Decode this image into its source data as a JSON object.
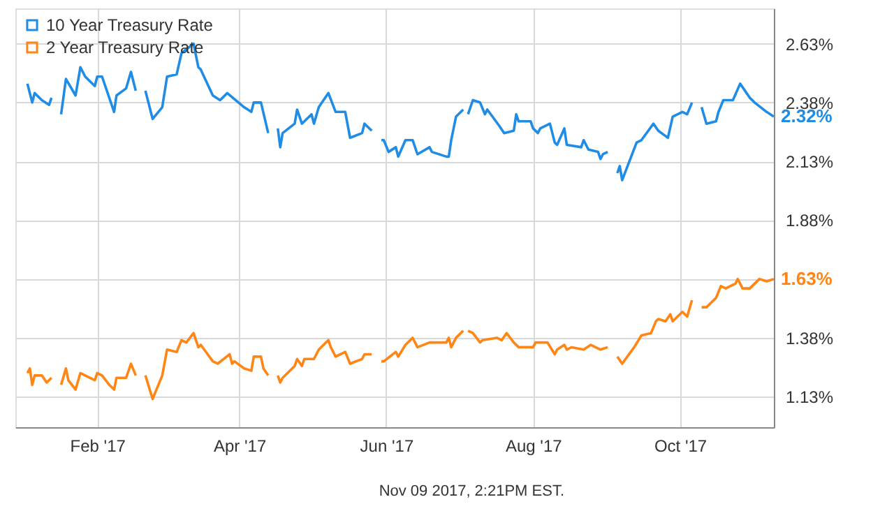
{
  "chart_data": {
    "type": "line",
    "series": [
      {
        "name": "10 Year Treasury Rate",
        "color": "#1f8ce6",
        "x": [
          "2017-01-03",
          "2017-01-05",
          "2017-01-06",
          "2017-01-09",
          "2017-01-12",
          "2017-01-13",
          "2017-01-16",
          "2017-01-17",
          "2017-01-19",
          "2017-01-23",
          "2017-01-25",
          "2017-01-27",
          "2017-01-31",
          "2017-02-01",
          "2017-02-03",
          "2017-02-08",
          "2017-02-09",
          "2017-02-13",
          "2017-02-15",
          "2017-02-17",
          "2017-02-20",
          "2017-02-21",
          "2017-02-24",
          "2017-02-28",
          "2017-03-02",
          "2017-03-06",
          "2017-03-08",
          "2017-03-13",
          "2017-03-15",
          "2017-03-16",
          "2017-03-21",
          "2017-03-24",
          "2017-03-27",
          "2017-04-03",
          "2017-04-06",
          "2017-04-07",
          "2017-04-10",
          "2017-04-13",
          "2017-04-14",
          "2017-04-17",
          "2017-04-18",
          "2017-04-19",
          "2017-04-24",
          "2017-04-25",
          "2017-04-27",
          "2017-05-01",
          "2017-05-02",
          "2017-05-04",
          "2017-05-08",
          "2017-05-11",
          "2017-05-15",
          "2017-05-17",
          "2017-05-22",
          "2017-05-23",
          "2017-05-26",
          "2017-05-29",
          "2017-05-30",
          "2017-05-31",
          "2017-06-02",
          "2017-06-05",
          "2017-06-06",
          "2017-06-09",
          "2017-06-12",
          "2017-06-14",
          "2017-06-19",
          "2017-06-20",
          "2017-06-26",
          "2017-06-27",
          "2017-06-28",
          "2017-06-30",
          "2017-07-03",
          "2017-07-04",
          "2017-07-05",
          "2017-07-07",
          "2017-07-10",
          "2017-07-12",
          "2017-07-13",
          "2017-07-18",
          "2017-07-20",
          "2017-07-24",
          "2017-07-25",
          "2017-07-26",
          "2017-07-31",
          "2017-08-01",
          "2017-08-03",
          "2017-08-04",
          "2017-08-08",
          "2017-08-10",
          "2017-08-11",
          "2017-08-14",
          "2017-08-15",
          "2017-08-21",
          "2017-08-22",
          "2017-08-24",
          "2017-08-28",
          "2017-08-29",
          "2017-08-30",
          "2017-09-01",
          "2017-09-04",
          "2017-09-05",
          "2017-09-06",
          "2017-09-07",
          "2017-09-13",
          "2017-09-15",
          "2017-09-20",
          "2017-09-22",
          "2017-09-26",
          "2017-09-28",
          "2017-10-02",
          "2017-10-04",
          "2017-10-06",
          "2017-10-09",
          "2017-10-10",
          "2017-10-12",
          "2017-10-16",
          "2017-10-17",
          "2017-10-19",
          "2017-10-23",
          "2017-10-26",
          "2017-10-30",
          "2017-11-01",
          "2017-11-06",
          "2017-11-09"
        ],
        "values": [
          2.46,
          2.38,
          2.42,
          2.39,
          2.37,
          2.4,
          null,
          2.33,
          2.48,
          2.41,
          2.53,
          2.49,
          2.45,
          2.49,
          2.49,
          2.34,
          2.41,
          2.44,
          2.51,
          2.43,
          null,
          2.43,
          2.31,
          2.36,
          2.49,
          2.5,
          2.59,
          2.63,
          2.53,
          2.52,
          2.41,
          2.39,
          2.42,
          2.36,
          2.34,
          2.38,
          2.38,
          2.25,
          null,
          2.27,
          2.19,
          2.25,
          2.29,
          2.35,
          2.29,
          2.33,
          2.29,
          2.36,
          2.42,
          2.34,
          2.34,
          2.23,
          2.25,
          2.29,
          2.26,
          null,
          2.22,
          2.22,
          2.17,
          2.19,
          2.15,
          2.22,
          2.22,
          2.16,
          2.19,
          2.17,
          2.15,
          2.15,
          2.22,
          2.32,
          2.35,
          null,
          2.33,
          2.39,
          2.38,
          2.33,
          2.35,
          2.28,
          2.25,
          2.26,
          2.33,
          2.3,
          2.3,
          2.27,
          2.25,
          2.27,
          2.29,
          2.21,
          2.2,
          2.27,
          2.2,
          2.19,
          2.22,
          2.18,
          2.17,
          2.14,
          2.16,
          2.17,
          null,
          2.08,
          2.11,
          2.05,
          2.21,
          2.22,
          2.29,
          2.26,
          2.23,
          2.32,
          2.34,
          2.33,
          2.38,
          null,
          2.36,
          2.29,
          2.3,
          2.34,
          2.39,
          2.39,
          2.46,
          2.4,
          2.38,
          2.34,
          2.32
        ]
      },
      {
        "name": "2 Year Treasury Rate",
        "color": "#ff8514",
        "x": [
          "2017-01-03",
          "2017-01-04",
          "2017-01-05",
          "2017-01-06",
          "2017-01-09",
          "2017-01-11",
          "2017-01-13",
          "2017-01-16",
          "2017-01-17",
          "2017-01-19",
          "2017-01-20",
          "2017-01-23",
          "2017-01-25",
          "2017-01-27",
          "2017-01-31",
          "2017-02-01",
          "2017-02-03",
          "2017-02-06",
          "2017-02-08",
          "2017-02-09",
          "2017-02-13",
          "2017-02-15",
          "2017-02-17",
          "2017-02-20",
          "2017-02-21",
          "2017-02-24",
          "2017-02-28",
          "2017-03-02",
          "2017-03-06",
          "2017-03-08",
          "2017-03-10",
          "2017-03-13",
          "2017-03-15",
          "2017-03-16",
          "2017-03-21",
          "2017-03-23",
          "2017-03-28",
          "2017-03-29",
          "2017-03-30",
          "2017-04-03",
          "2017-04-06",
          "2017-04-07",
          "2017-04-10",
          "2017-04-11",
          "2017-04-13",
          "2017-04-14",
          "2017-04-17",
          "2017-04-18",
          "2017-04-19",
          "2017-04-24",
          "2017-04-25",
          "2017-04-27",
          "2017-04-28",
          "2017-05-02",
          "2017-05-04",
          "2017-05-08",
          "2017-05-09",
          "2017-05-11",
          "2017-05-15",
          "2017-05-17",
          "2017-05-22",
          "2017-05-23",
          "2017-05-26",
          "2017-05-29",
          "2017-05-30",
          "2017-05-31",
          "2017-06-05",
          "2017-06-06",
          "2017-06-09",
          "2017-06-12",
          "2017-06-14",
          "2017-06-19",
          "2017-06-20",
          "2017-06-26",
          "2017-06-27",
          "2017-06-28",
          "2017-06-30",
          "2017-07-03",
          "2017-07-04",
          "2017-07-05",
          "2017-07-07",
          "2017-07-10",
          "2017-07-11",
          "2017-07-17",
          "2017-07-19",
          "2017-07-21",
          "2017-07-24",
          "2017-07-26",
          "2017-08-01",
          "2017-08-02",
          "2017-08-07",
          "2017-08-10",
          "2017-08-11",
          "2017-08-14",
          "2017-08-15",
          "2017-08-17",
          "2017-08-22",
          "2017-08-25",
          "2017-08-29",
          "2017-09-01",
          "2017-09-04",
          "2017-09-05",
          "2017-09-07",
          "2017-09-12",
          "2017-09-15",
          "2017-09-19",
          "2017-09-21",
          "2017-09-22",
          "2017-09-25",
          "2017-09-27",
          "2017-09-28",
          "2017-10-02",
          "2017-10-04",
          "2017-10-06",
          "2017-10-09",
          "2017-10-10",
          "2017-10-12",
          "2017-10-16",
          "2017-10-18",
          "2017-10-20",
          "2017-10-24",
          "2017-10-25",
          "2017-10-27",
          "2017-10-30",
          "2017-11-01",
          "2017-11-03",
          "2017-11-06",
          "2017-11-09"
        ],
        "values": [
          1.23,
          1.25,
          1.18,
          1.22,
          1.22,
          1.19,
          1.21,
          null,
          1.18,
          1.25,
          1.2,
          1.16,
          1.23,
          1.22,
          1.2,
          1.23,
          1.22,
          1.18,
          1.16,
          1.21,
          1.21,
          1.27,
          1.22,
          null,
          1.22,
          1.12,
          1.22,
          1.33,
          1.32,
          1.37,
          1.36,
          1.4,
          1.34,
          1.35,
          1.28,
          1.27,
          1.31,
          1.27,
          1.28,
          1.25,
          1.24,
          1.3,
          1.3,
          1.25,
          1.22,
          null,
          1.22,
          1.19,
          1.21,
          1.26,
          1.29,
          1.26,
          1.29,
          1.29,
          1.33,
          1.37,
          1.34,
          1.3,
          1.32,
          1.27,
          1.29,
          1.31,
          1.31,
          null,
          1.28,
          1.28,
          1.32,
          1.3,
          1.35,
          1.38,
          1.34,
          1.36,
          1.36,
          1.36,
          1.38,
          1.34,
          1.38,
          1.41,
          null,
          1.41,
          1.4,
          1.36,
          1.37,
          1.38,
          1.37,
          1.4,
          1.36,
          1.34,
          1.34,
          1.36,
          1.36,
          1.31,
          1.33,
          1.35,
          1.33,
          1.34,
          1.33,
          1.35,
          1.33,
          1.34,
          null,
          1.3,
          1.27,
          1.34,
          1.39,
          1.4,
          1.45,
          1.46,
          1.45,
          1.48,
          1.45,
          1.49,
          1.47,
          1.54,
          null,
          1.51,
          1.51,
          1.55,
          1.6,
          1.59,
          1.61,
          1.63,
          1.59,
          1.59,
          1.61,
          1.63,
          1.62,
          1.63
        ]
      }
    ],
    "xlim": [
      "2016-12-29",
      "2017-11-09"
    ],
    "xticks": [
      {
        "value": "2017-02-01",
        "label": "Feb '17"
      },
      {
        "value": "2017-04-01",
        "label": "Apr '17"
      },
      {
        "value": "2017-06-01",
        "label": "Jun '17"
      },
      {
        "value": "2017-08-01",
        "label": "Aug '17"
      },
      {
        "value": "2017-10-01",
        "label": "Oct '17"
      }
    ],
    "ylim": [
      1.0,
      2.78
    ],
    "yticks": [
      {
        "value": 1.13,
        "label": "1.13%"
      },
      {
        "value": 1.38,
        "label": "1.38%"
      },
      {
        "value": 1.63,
        "label": null
      },
      {
        "value": 1.88,
        "label": "1.88%"
      },
      {
        "value": 2.13,
        "label": "2.13%"
      },
      {
        "value": 2.38,
        "label": "2.38%"
      },
      {
        "value": 2.63,
        "label": "2.63%"
      }
    ],
    "grid": true,
    "legend": "top left",
    "annotations": [
      {
        "text": "2.32%",
        "x": "2017-11-09",
        "y": 2.32
      },
      {
        "text": "1.63%",
        "x": "2017-11-09",
        "y": 1.63
      },
      "Nov 09 2017, 2:21PM EST."
    ]
  }
}
